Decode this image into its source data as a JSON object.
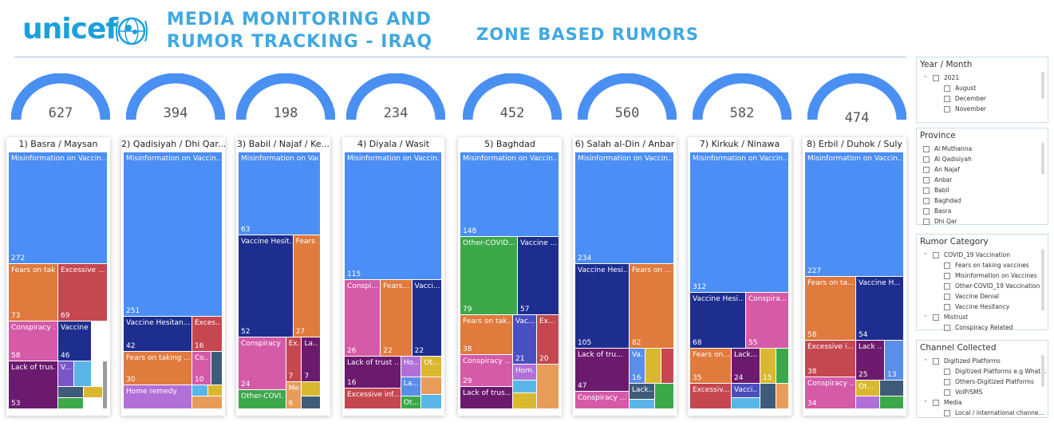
{
  "header": {
    "logo_text": "unicef",
    "title_line1": "MEDIA MONITORING AND",
    "title_line2": "RUMOR TRACKING - IRAQ",
    "page_title": "ZONE BASED RUMORS"
  },
  "colors": {
    "accent": "#41a8e0",
    "gauge": "#4a8ff2"
  },
  "zones": [
    {
      "title": "1) Basra / Maysan",
      "total": "627",
      "tiles": [
        {
          "label": "Misinformation on Vaccin...",
          "value": "272",
          "color": "#4b8ef5"
        },
        {
          "label": "Fears on tak...",
          "value": "73",
          "color": "#e07a3d"
        },
        {
          "label": "Excessive ...",
          "value": "69",
          "color": "#c5474f"
        },
        {
          "label": "Conspiracy ...",
          "value": "58",
          "color": "#d55aa8"
        },
        {
          "label": "Vaccine H...",
          "value": "46",
          "color": "#1e2e8f"
        },
        {
          "label": "Lack of trus...",
          "value": "53",
          "color": "#6b1a6e"
        },
        {
          "label": "V...",
          "value": "",
          "color": "#7b55c9"
        },
        {
          "label": "",
          "value": "",
          "color": "#5ab6e8"
        },
        {
          "label": "",
          "value": "",
          "color": "#3e5c7a"
        },
        {
          "label": "",
          "value": "",
          "color": "#d9b830"
        },
        {
          "label": "",
          "value": "",
          "color": "#3da84a"
        },
        {
          "label": "",
          "value": "",
          "color": "#9c9c9c"
        }
      ]
    },
    {
      "title": "2) Qadisiyah / Dhi Qar...",
      "total": "394",
      "tiles": [
        {
          "label": "Misinformation on Vaccin...",
          "value": "251",
          "color": "#4b8ef5"
        },
        {
          "label": "Vaccine Hesitan...",
          "value": "42",
          "color": "#1e2e8f"
        },
        {
          "label": "Exces...",
          "value": "16",
          "color": "#c5474f"
        },
        {
          "label": "Fears on taking ...",
          "value": "30",
          "color": "#e07a3d"
        },
        {
          "label": "Co...",
          "value": "10",
          "color": "#d55aa8"
        },
        {
          "label": "Home remedy",
          "value": "",
          "color": "#b070d8"
        },
        {
          "label": "",
          "value": "",
          "color": "#3e5c7a"
        },
        {
          "label": "",
          "value": "",
          "color": "#5ab6e8"
        },
        {
          "label": "",
          "value": "",
          "color": "#d9b830"
        },
        {
          "label": "",
          "value": "",
          "color": "#e89c5a"
        }
      ]
    },
    {
      "title": "3) Babil / Najaf / Ke...",
      "total": "198",
      "tiles": [
        {
          "label": "Misinformation on Vacci...",
          "value": "63",
          "color": "#4b8ef5"
        },
        {
          "label": "Vaccine Hesit...",
          "value": "52",
          "color": "#1e2e8f"
        },
        {
          "label": "Fears ...",
          "value": "27",
          "color": "#e07a3d"
        },
        {
          "label": "Conspiracy ...",
          "value": "24",
          "color": "#d55aa8"
        },
        {
          "label": "Ex...",
          "value": "7",
          "color": "#c5474f"
        },
        {
          "label": "La...",
          "value": "7",
          "color": "#6b1a6e"
        },
        {
          "label": "Other-COVI...",
          "value": "",
          "color": "#3da84a"
        },
        {
          "label": "Me...",
          "value": "6",
          "color": "#e89c5a"
        },
        {
          "label": "",
          "value": "",
          "color": "#d9b830"
        },
        {
          "label": "",
          "value": "",
          "color": "#3e5c7a"
        }
      ]
    },
    {
      "title": "4) Diyala / Wasit",
      "total": "234",
      "tiles": [
        {
          "label": "Misinformation on Vaccin...",
          "value": "115",
          "color": "#4b8ef5"
        },
        {
          "label": "Conspi...",
          "value": "26",
          "color": "#d55aa8"
        },
        {
          "label": "Fears...",
          "value": "22",
          "color": "#e07a3d"
        },
        {
          "label": "Vacci...",
          "value": "22",
          "color": "#1e2e8f"
        },
        {
          "label": "Lack of trust ...",
          "value": "16",
          "color": "#6b1a6e"
        },
        {
          "label": "Ho...",
          "value": "",
          "color": "#b070d8"
        },
        {
          "label": "Ot...",
          "value": "",
          "color": "#d9b830"
        },
        {
          "label": "Excessive inf...",
          "value": "",
          "color": "#c5474f"
        },
        {
          "label": "La...",
          "value": "",
          "color": "#5a8ee8"
        },
        {
          "label": "Ot...",
          "value": "",
          "color": "#3da84a"
        },
        {
          "label": "",
          "value": "",
          "color": "#e89c5a"
        },
        {
          "label": "",
          "value": "",
          "color": "#5ab6e8"
        }
      ]
    },
    {
      "title": "5) Baghdad",
      "total": "452",
      "tiles": [
        {
          "label": "Misinformation on Vaccin...",
          "value": "148",
          "color": "#4b8ef5"
        },
        {
          "label": "Other-COVID...",
          "value": "79",
          "color": "#3da84a"
        },
        {
          "label": "Vaccine ...",
          "value": "57",
          "color": "#1e2e8f"
        },
        {
          "label": "Fears on tak...",
          "value": "38",
          "color": "#e07a3d"
        },
        {
          "label": "Vac...",
          "value": "21",
          "color": "#4a4fc0"
        },
        {
          "label": "Ex...",
          "value": "20",
          "color": "#c5474f"
        },
        {
          "label": "Conspiracy ...",
          "value": "29",
          "color": "#d55aa8"
        },
        {
          "label": "Hom...",
          "value": "",
          "color": "#b070d8"
        },
        {
          "label": "Lack of trus...",
          "value": "",
          "color": "#6b1a6e"
        },
        {
          "label": "",
          "value": "",
          "color": "#5ab6e8"
        },
        {
          "label": "",
          "value": "",
          "color": "#e89c5a"
        },
        {
          "label": "",
          "value": "",
          "color": "#d9b830"
        }
      ]
    },
    {
      "title": "6) Salah al-Din / Anbar",
      "total": "560",
      "tiles": [
        {
          "label": "Misinformation on Vaccin...",
          "value": "234",
          "color": "#4b8ef5"
        },
        {
          "label": "Vaccine Hesi...",
          "value": "105",
          "color": "#1e2e8f"
        },
        {
          "label": "Fears on ...",
          "value": "82",
          "color": "#e07a3d"
        },
        {
          "label": "Lack of tru...",
          "value": "47",
          "color": "#6b1a6e"
        },
        {
          "label": "Va...",
          "value": "16",
          "color": "#5a8ee8"
        },
        {
          "label": "",
          "value": "",
          "color": "#d9b830"
        },
        {
          "label": "",
          "value": "",
          "color": "#c5474f"
        },
        {
          "label": "Conspiracy ...",
          "value": "",
          "color": "#d55aa8"
        },
        {
          "label": "Lack...",
          "value": "",
          "color": "#3e5c7a"
        },
        {
          "label": "",
          "value": "",
          "color": "#3da84a"
        },
        {
          "label": "",
          "value": "",
          "color": "#5ab6e8"
        }
      ]
    },
    {
      "title": "7) Kirkuk / Ninawa",
      "total": "582",
      "tiles": [
        {
          "label": "Misinformation on Vaccin...",
          "value": "312",
          "color": "#4b8ef5"
        },
        {
          "label": "Vaccine Hesi...",
          "value": "68",
          "color": "#1e2e8f"
        },
        {
          "label": "Conspira...",
          "value": "55",
          "color": "#d55aa8"
        },
        {
          "label": "Fears on...",
          "value": "35",
          "color": "#e07a3d"
        },
        {
          "label": "Lack...",
          "value": "24",
          "color": "#6b1a6e"
        },
        {
          "label": "",
          "value": "15",
          "color": "#d9b830"
        },
        {
          "label": "",
          "value": "",
          "color": "#3da84a"
        },
        {
          "label": "Excessiv...",
          "value": "",
          "color": "#c5474f"
        },
        {
          "label": "Vacci...",
          "value": "",
          "color": "#4a4fc0"
        },
        {
          "label": "",
          "value": "",
          "color": "#3e5c7a"
        },
        {
          "label": "",
          "value": "",
          "color": "#5ab6e8"
        },
        {
          "label": "",
          "value": "",
          "color": "#e89c5a"
        }
      ]
    },
    {
      "title": "8) Erbil / Duhok / Suly",
      "total": "474",
      "tiles": [
        {
          "label": "Misinformation on Vaccin...",
          "value": "227",
          "color": "#4b8ef5"
        },
        {
          "label": "Fears on ta...",
          "value": "58",
          "color": "#e07a3d"
        },
        {
          "label": "Vaccine H...",
          "value": "54",
          "color": "#1e2e8f"
        },
        {
          "label": "Excessive i...",
          "value": "38",
          "color": "#c5474f"
        },
        {
          "label": "Lack ...",
          "value": "25",
          "color": "#6b1a6e"
        },
        {
          "label": "",
          "value": "13",
          "color": "#5a8ee8"
        },
        {
          "label": "Conspiracy ...",
          "value": "34",
          "color": "#d55aa8"
        },
        {
          "label": "Ot...",
          "value": "",
          "color": "#d9b830"
        },
        {
          "label": "",
          "value": "",
          "color": "#3e5c7a"
        },
        {
          "label": "",
          "value": "",
          "color": "#b070d8"
        },
        {
          "label": "",
          "value": "",
          "color": "#3da84a"
        }
      ]
    }
  ],
  "slicers": {
    "year_month": {
      "title": "Year / Month",
      "items": [
        {
          "label": "2021",
          "level": 0,
          "expand": true
        },
        {
          "label": "August",
          "level": 1
        },
        {
          "label": "December",
          "level": 1
        },
        {
          "label": "November",
          "level": 1
        }
      ]
    },
    "province": {
      "title": "Province",
      "items": [
        {
          "label": "Al Muthanna"
        },
        {
          "label": "Al Qadisiyah"
        },
        {
          "label": "An Najaf"
        },
        {
          "label": "Anbar"
        },
        {
          "label": "Babil"
        },
        {
          "label": "Baghdad"
        },
        {
          "label": "Basra"
        },
        {
          "label": "Dhi Qar"
        }
      ]
    },
    "rumor_category": {
      "title": "Rumor Category",
      "items": [
        {
          "label": "COVID_19 Vaccination",
          "level": 0,
          "expand": true
        },
        {
          "label": "Fears on taking vaccines",
          "level": 1
        },
        {
          "label": "Misinformation on Vaccines",
          "level": 1
        },
        {
          "label": "Other-COVID_19 Vaccination",
          "level": 1
        },
        {
          "label": "Vaccine Denial",
          "level": 1
        },
        {
          "label": "Vaccine Hesitancy",
          "level": 1
        },
        {
          "label": "Mistrust",
          "level": 0,
          "expand": true
        },
        {
          "label": "Conspiracy Related",
          "level": 1
        }
      ]
    },
    "channel_collected": {
      "title": "Channel Collected",
      "items": [
        {
          "label": "Digitized Platforms",
          "level": 0,
          "expand": true
        },
        {
          "label": "Digitized Platforms e.g What...",
          "level": 1
        },
        {
          "label": "Others-Digitized Platforms",
          "level": 1
        },
        {
          "label": "VoIP/SMS",
          "level": 1
        },
        {
          "label": "Media",
          "level": 0,
          "expand": true
        },
        {
          "label": "Local / international channe...",
          "level": 1
        }
      ]
    }
  }
}
